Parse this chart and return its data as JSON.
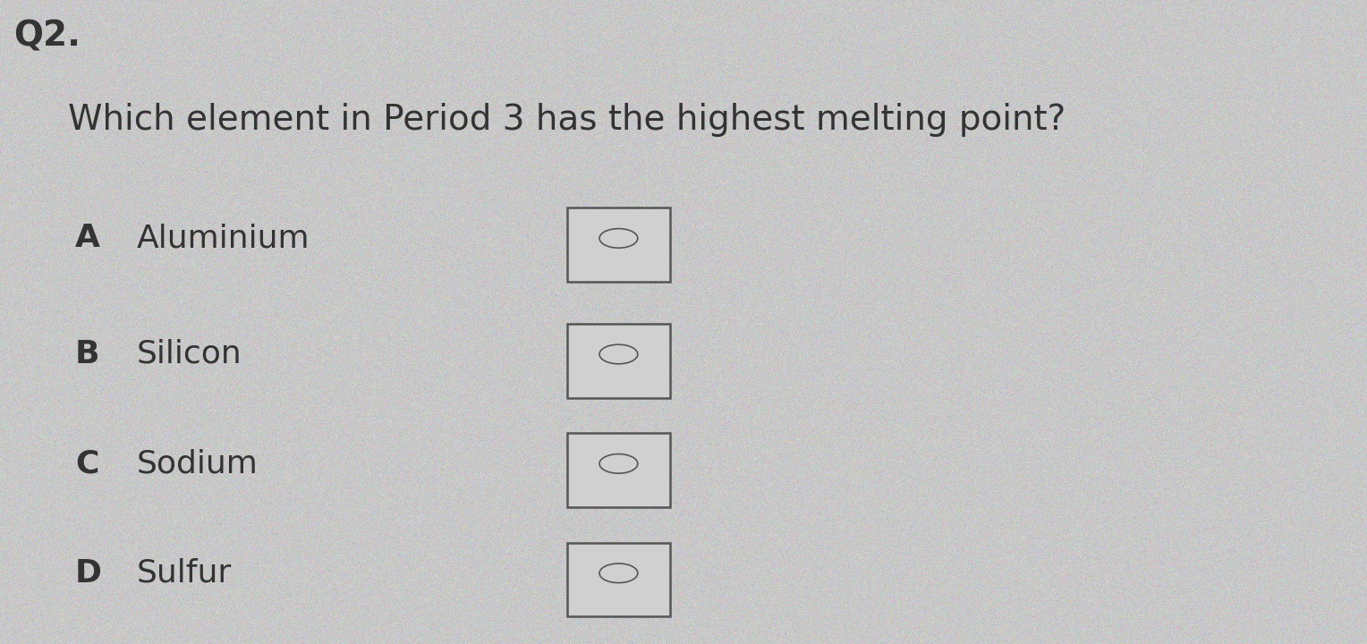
{
  "question_number": "Q2.",
  "question_text": "Which element in Period 3 has the highest melting point?",
  "options": [
    {
      "label": "A",
      "text": "Aluminium"
    },
    {
      "label": "B",
      "text": "Silicon"
    },
    {
      "label": "C",
      "text": "Sodium"
    },
    {
      "label": "D",
      "text": "Sulfur"
    }
  ],
  "background_color": "#c8c8c8",
  "text_color": "#333333",
  "box_face_color": "#d0d0d0",
  "box_edge_color": "#555555",
  "question_number_fontsize": 28,
  "question_fontsize": 28,
  "option_label_fontsize": 26,
  "option_text_fontsize": 26
}
